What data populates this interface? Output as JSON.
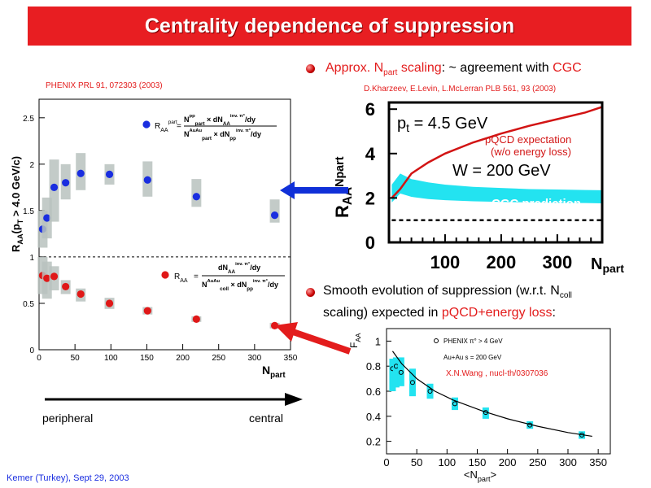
{
  "slide": {
    "title": "Centrality dependence of suppression",
    "left_reference": "PHENIX PRL 91, 072303 (2003)",
    "bullet1": {
      "prefix": "Approx. N",
      "sub": "part",
      "mid": " scaling",
      "colon": ": ~ agreement with ",
      "highlight": "CGC"
    },
    "cgc_reference": "D.Kharzeev, E.Levin, L.McLerran PLB 561, 93 (2003)",
    "bullet2": {
      "line1_prefix": "Smooth evolution of suppression (w.r.t. N",
      "line1_sub": "coll",
      "line2_prefix": "scaling) expected in ",
      "line2_highlight": "pQCD+energy loss",
      "line2_suffix": ":"
    },
    "direction": {
      "left": "peripheral",
      "right": "central"
    },
    "footer": "Kemer (Turkey), Sept 29, 2003",
    "colors": {
      "title_bar": "#e81e22",
      "highlight": "#e31c1c",
      "blue_marker": "#1a2ee0",
      "red_marker": "#e01818",
      "arrow_blue": "#1030d8",
      "cgc_band": "#23e3f0"
    }
  },
  "chart_data": [
    {
      "type": "scatter",
      "ylabel_main": "R",
      "ylabel_sub": "AA",
      "ylabel_rest": "(p",
      "ylabel_pt_sub": "T",
      "ylabel_tail": " > 4.0 GeV/c)",
      "xlabel_main": "N",
      "xlabel_sub": "part",
      "xlim": [
        0,
        350
      ],
      "ylim": [
        0,
        2.7
      ],
      "x_ticks": [
        "0",
        "50",
        "100",
        "150",
        "200",
        "250",
        "300",
        "350"
      ],
      "y_ticks": [
        "0",
        "0.5",
        "1",
        "1.5",
        "2",
        "2.5"
      ],
      "reference_line": 1,
      "series": [
        {
          "name": "RAA part",
          "legend_text": "R",
          "legend_sub": "AA",
          "legend_sup": "part",
          "formula_num": "N",
          "formula_num_sup": "pp",
          "formula_num_sub": "part",
          "formula_num_tail": " × dN",
          "formula_num_tail_sub": "AA",
          "formula_num_tail_sup": "inv. π°",
          "formula_num_end": "/dy",
          "formula_den": "N",
          "formula_den_sup": "AuAu",
          "formula_den_sub": "part",
          "formula_den_tail": " × dN",
          "formula_den_tail_sub": "pp",
          "formula_den_tail_sup": "inv. π°",
          "formula_den_end": "/dy",
          "x": [
            5,
            11,
            21,
            37,
            58,
            98,
            151,
            219,
            328
          ],
          "y": [
            1.3,
            1.42,
            1.75,
            1.8,
            1.9,
            1.89,
            1.83,
            1.65,
            1.45
          ],
          "box_low": [
            1.1,
            1.2,
            1.38,
            1.62,
            1.72,
            1.78,
            1.65,
            1.54,
            1.37
          ],
          "box_high": [
            1.5,
            1.64,
            2.05,
            2.0,
            2.12,
            2.0,
            2.03,
            1.84,
            1.62
          ]
        },
        {
          "name": "RAA",
          "legend_text": "R",
          "legend_sub": "AA",
          "formula_num": "dN",
          "formula_num_sub": "AA",
          "formula_num_sup": "inv. π°",
          "formula_num_end": "/dy",
          "formula_den": "N",
          "formula_den_sup": "AuAu",
          "formula_den_sub": "coll",
          "formula_den_tail": " × dN",
          "formula_den_tail_sub": "pp",
          "formula_den_tail_sup": "inv. π°",
          "formula_den_end": "/dy",
          "x": [
            5,
            11,
            21,
            37,
            58,
            98,
            151,
            219,
            328
          ],
          "y": [
            0.8,
            0.77,
            0.79,
            0.68,
            0.6,
            0.5,
            0.42,
            0.33,
            0.26
          ],
          "box_low": [
            0.6,
            0.55,
            0.64,
            0.6,
            0.52,
            0.44,
            0.38,
            0.3,
            0.23
          ],
          "box_high": [
            1.0,
            0.95,
            0.9,
            0.75,
            0.66,
            0.56,
            0.46,
            0.36,
            0.29
          ]
        }
      ]
    },
    {
      "type": "line",
      "ylabel_main": "R",
      "ylabel_sub": "AA",
      "ylabel_sup": "Npart",
      "xlabel_main": "N",
      "xlabel_sub": "part",
      "xlim": [
        0,
        380
      ],
      "ylim": [
        0,
        6.3
      ],
      "x_ticks": [
        "100",
        "200",
        "300"
      ],
      "y_ticks": [
        "0",
        "2",
        "4",
        "6"
      ],
      "pt_label": "p",
      "pt_sub": "t",
      "pt_value": " = 4.5 GeV",
      "w_label": "W = 200 GeV",
      "pqcd_label_1": "pQCD expectation",
      "pqcd_label_2": "(w/o energy loss)",
      "cgc_label": "CGC prediction",
      "series": [
        {
          "name": "pQCD expectation",
          "x": [
            5,
            20,
            40,
            70,
            100,
            150,
            200,
            250,
            300,
            350,
            380
          ],
          "y": [
            2.0,
            2.4,
            3.1,
            3.6,
            4.0,
            4.5,
            4.9,
            5.25,
            5.55,
            5.85,
            6.1
          ]
        },
        {
          "name": "CGC prediction",
          "x": [
            5,
            20,
            40,
            70,
            100,
            150,
            200,
            250,
            300,
            350,
            380
          ],
          "y_low": [
            1.8,
            2.2,
            2.05,
            1.95,
            1.9,
            1.85,
            1.82,
            1.8,
            1.78,
            1.77,
            1.76
          ],
          "y_high": [
            2.6,
            3.1,
            2.85,
            2.7,
            2.6,
            2.5,
            2.45,
            2.4,
            2.38,
            2.36,
            2.35
          ]
        },
        {
          "name": "reference",
          "x": [
            5,
            380
          ],
          "y": [
            1,
            1
          ]
        }
      ]
    },
    {
      "type": "scatter",
      "ylabel": "F",
      "ylabel_sub": "AA",
      "xlabel": "<N",
      "xlabel_sub": "part",
      "xlabel_end": ">",
      "xlim": [
        0,
        370
      ],
      "ylim": [
        0.1,
        1.1
      ],
      "x_ticks": [
        "0",
        "50",
        "100",
        "150",
        "200",
        "250",
        "300",
        "350"
      ],
      "y_ticks": [
        "0.2",
        "0.4",
        "0.6",
        "0.8",
        "1"
      ],
      "legend_1": "PHENIX π° > 4 GeV",
      "legend_2": "Au+Au     s = 200 GeV",
      "reference": "X.N.Wang , nucl-th/0307036",
      "series": [
        {
          "name": "data",
          "x": [
            10,
            16,
            24,
            43,
            72,
            113,
            164,
            237,
            323
          ],
          "y": [
            0.78,
            0.8,
            0.75,
            0.67,
            0.6,
            0.5,
            0.43,
            0.33,
            0.25
          ],
          "box_low": [
            0.6,
            0.63,
            0.64,
            0.56,
            0.54,
            0.45,
            0.38,
            0.3,
            0.22
          ],
          "box_high": [
            0.86,
            0.87,
            0.87,
            0.78,
            0.66,
            0.55,
            0.47,
            0.36,
            0.28
          ]
        },
        {
          "name": "curve",
          "x": [
            10,
            25,
            50,
            80,
            110,
            160,
            200,
            250,
            300,
            340
          ],
          "y": [
            0.92,
            0.82,
            0.7,
            0.6,
            0.53,
            0.44,
            0.38,
            0.32,
            0.27,
            0.24
          ]
        }
      ]
    }
  ]
}
